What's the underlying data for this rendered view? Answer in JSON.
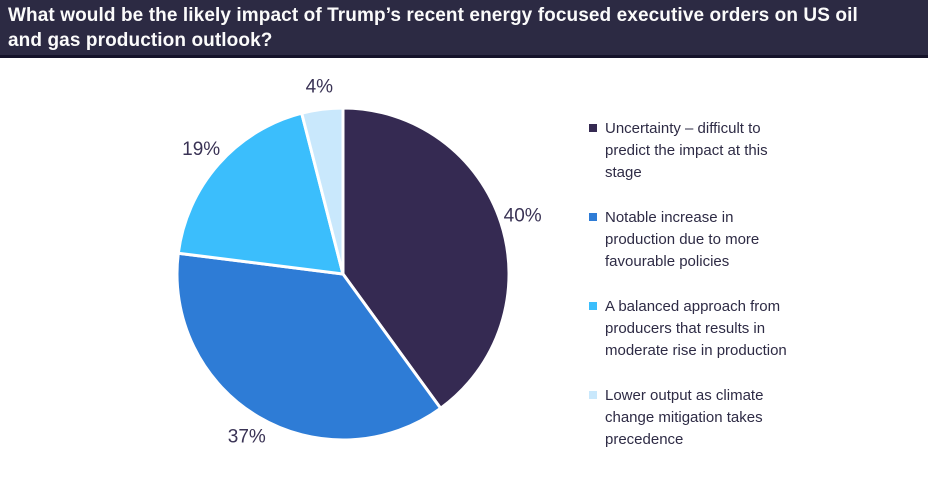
{
  "header": {
    "title_line1": "What would be the likely impact of Trump’s recent energy focused executive orders on US oil",
    "title_line2": "and gas production outlook?"
  },
  "banner": {
    "background_color": "#2C2A43",
    "text_color": "#FBFBFB"
  },
  "chart_data": {
    "type": "pie",
    "title": "What would be the likely impact of Trump’s recent energy focused executive orders on US oil and gas production outlook?",
    "start_angle": "12 o'clock, clockwise",
    "legend_position": "right",
    "slice_border_color": "#FFFFFF",
    "value_label_color": "#3A3355",
    "legend_text_color": "#2E2B45",
    "slices": [
      {
        "label": "Uncertainty – difficult to predict the impact at this stage",
        "value": 40,
        "value_label": "40%",
        "color": "#352A52"
      },
      {
        "label": "Notable increase in production due to more favourable policies",
        "value": 37,
        "value_label": "37%",
        "color": "#2E7CD6"
      },
      {
        "label": "A balanced approach from producers that results in moderate rise in production",
        "value": 19,
        "value_label": "19%",
        "color": "#3BBEFC"
      },
      {
        "label": "Lower output as climate change mitigation takes precedence",
        "value": 4,
        "value_label": "4%",
        "color": "#C9E8FC"
      }
    ]
  }
}
